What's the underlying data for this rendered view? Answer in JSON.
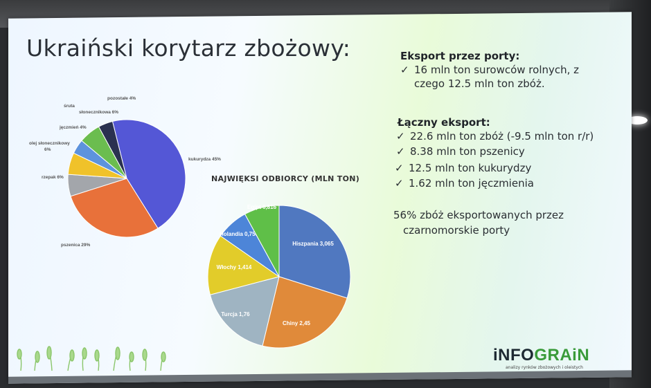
{
  "slide": {
    "title": "Ukraiński korytarz zbożowy:",
    "exports_ports": {
      "heading": "Eksport przez porty:",
      "items": [
        "16 mln ton surowców rolnych, z",
        "czego 12.5 mln ton zbóż."
      ]
    },
    "total_exports": {
      "heading": "Łączny eksport:",
      "items": [
        "22.6 mln ton zbóż (-9.5 mln ton r/r)",
        "8.38 mln ton pszenicy",
        "12.5 mln ton kukurydzy",
        "1.62 mln ton jęczmienia"
      ]
    },
    "note_lines": [
      "56% zbóż eksportowanych przez",
      "czarnomorskie porty"
    ],
    "tick": "✓",
    "logo": {
      "part1": "iNFO",
      "part2": "GRAiN",
      "tagline": "analizy rynków zbożowych i oleistych"
    }
  },
  "chart_data": [
    {
      "type": "pie",
      "title": "",
      "slices": [
        {
          "label": "kukurydza 45%",
          "value": 45,
          "color": "#5457d6"
        },
        {
          "label": "pszenica 29%",
          "value": 29,
          "color": "#e8713a"
        },
        {
          "label": "rzepak 6%",
          "value": 6,
          "color": "#a3a6ab"
        },
        {
          "label": "olej słonecznikowy 6%",
          "value": 6,
          "color": "#f0c22a"
        },
        {
          "label": "jęczmień 4%",
          "value": 4,
          "color": "#5d93dd"
        },
        {
          "label": "śruta słonecznikowa 6%",
          "value": 6,
          "color": "#6bbd4f"
        },
        {
          "label": "pozostałe 4%",
          "value": 4,
          "color": "#2a3150"
        }
      ]
    },
    {
      "type": "pie",
      "title": "NAJWIĘKSI ODBIORCY (MLN TON)",
      "slices": [
        {
          "label": "Hiszpania 3,065",
          "value": 3.065,
          "color": "#5078c0"
        },
        {
          "label": "Chiny 2,45",
          "value": 2.45,
          "color": "#e08a3a"
        },
        {
          "label": "Turcja 1,76",
          "value": 1.76,
          "color": "#9fb4c2"
        },
        {
          "label": "Włochy 1,414",
          "value": 1.414,
          "color": "#e2cc2a"
        },
        {
          "label": "Holandia 0,756",
          "value": 0.756,
          "color": "#4d85d8"
        },
        {
          "label": "Egipt 0,816",
          "value": 0.816,
          "color": "#5fbf48"
        }
      ]
    }
  ]
}
